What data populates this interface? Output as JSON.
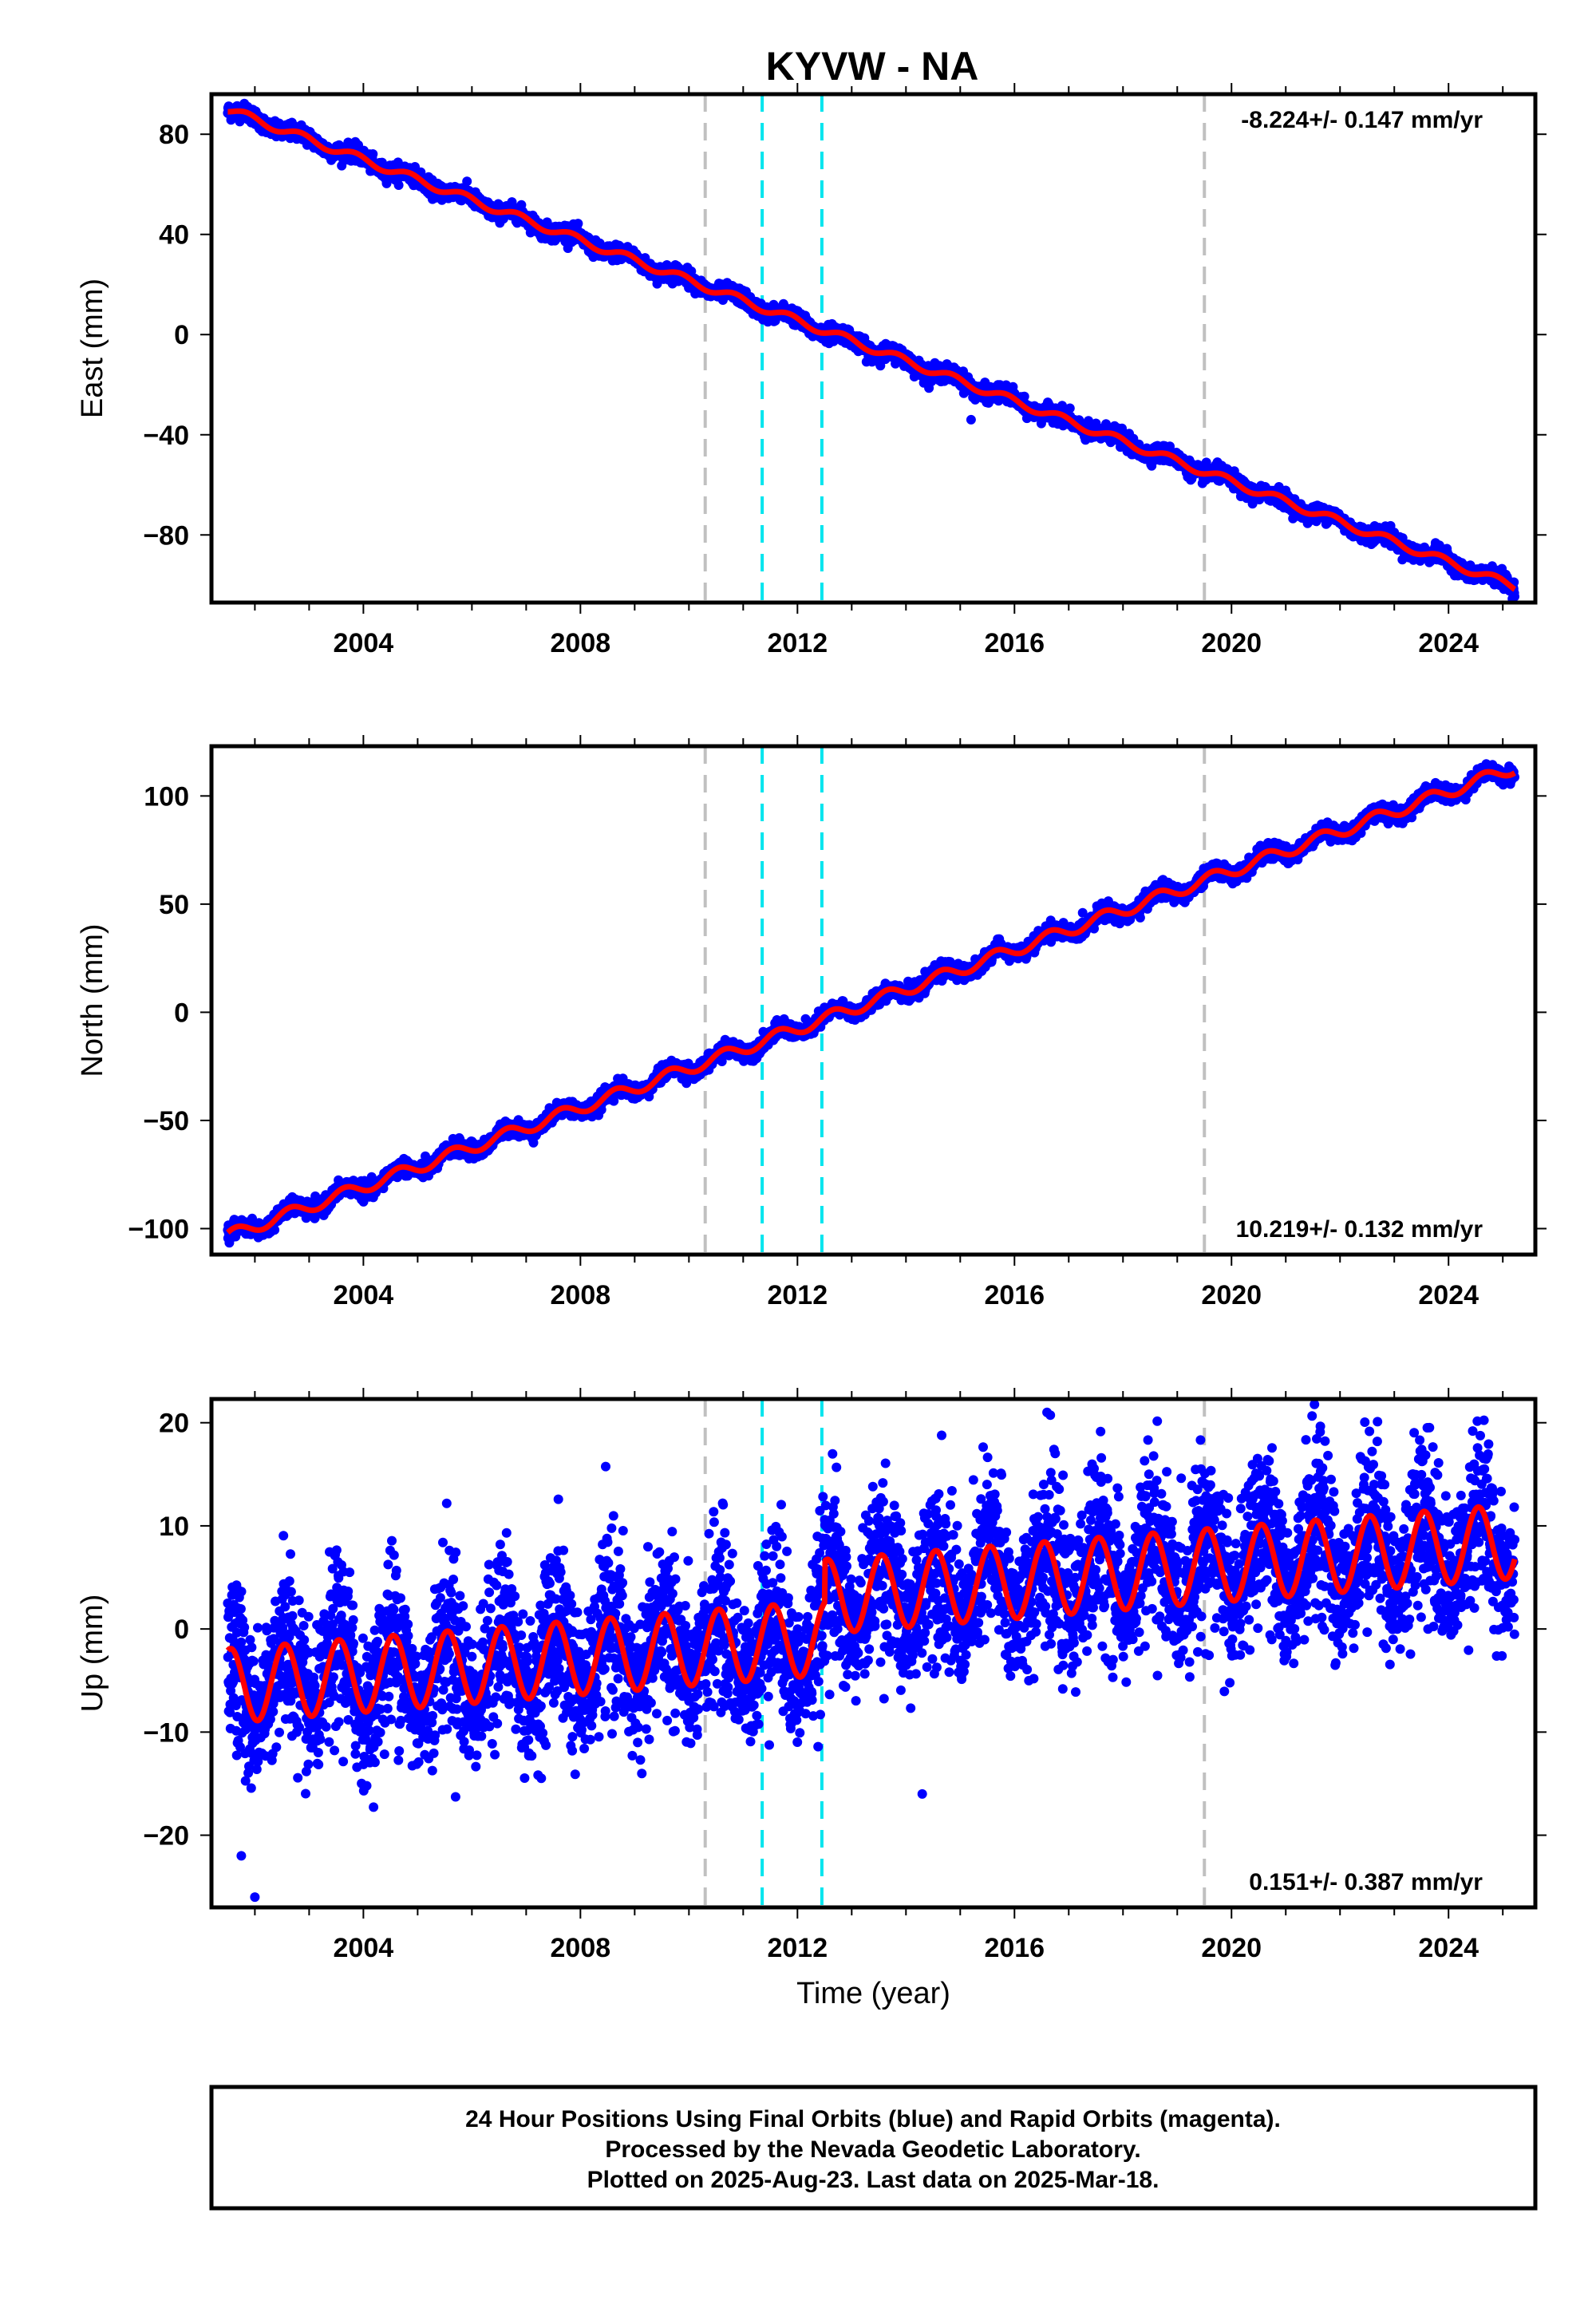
{
  "figure": {
    "title": "KYVW - NA",
    "footer": [
      "24 Hour Positions Using Final Orbits (blue) and Rapid Orbits (magenta).",
      "Processed by the Nevada Geodetic Laboratory.",
      "Plotted on 2025-Aug-23. Last data on 2025-Mar-18."
    ],
    "colors": {
      "final_points": "#0000ff",
      "model_line": "#ff0000",
      "antenna_change": "#c0c0c0",
      "earthquake": "#00e5ee",
      "frame": "#000000"
    }
  },
  "chart_data": [
    {
      "type": "scatter",
      "component": "East",
      "ylabel": "East (mm)",
      "xlabel": "",
      "xlim": [
        2001.2,
        2025.6
      ],
      "ylim": [
        -107,
        96
      ],
      "xticks": [
        2004,
        2008,
        2012,
        2016,
        2020,
        2024
      ],
      "yticks": [
        80,
        40,
        0,
        -40,
        -80
      ],
      "ytick_labels": [
        "80",
        "40",
        "0",
        "−40",
        "−80"
      ],
      "rate_label": "-8.224+/- 0.147 mm/yr",
      "rate_position": "top-right",
      "rate_mm_per_yr": -8.224,
      "start": [
        2001.55,
        89.5
      ],
      "end": [
        2025.2,
        -100.5
      ],
      "seasonal_amplitude": 1.6,
      "scatter_sd": 1.6,
      "outliers": [
        [
          2015.2,
          -34
        ]
      ],
      "range": [
        2001.5,
        2025.22
      ]
    },
    {
      "type": "scatter",
      "component": "North",
      "ylabel": "North (mm)",
      "xlabel": "",
      "xlim": [
        2001.2,
        2025.6
      ],
      "ylim": [
        -112,
        123
      ],
      "xticks": [
        2004,
        2008,
        2012,
        2016,
        2020,
        2024
      ],
      "yticks": [
        100,
        50,
        0,
        -50,
        -100
      ],
      "ytick_labels": [
        "100",
        "50",
        "0",
        "−50",
        "−100"
      ],
      "rate_label": "10.219+/- 0.132 mm/yr",
      "rate_position": "bottom-right",
      "rate_mm_per_yr": 10.219,
      "start": [
        2001.55,
        -103
      ],
      "end": [
        2025.2,
        113
      ],
      "seasonal_amplitude": 2.8,
      "scatter_sd": 1.8,
      "outliers": [],
      "range": [
        2001.5,
        2025.22
      ]
    },
    {
      "type": "scatter",
      "component": "Up",
      "ylabel": "Up (mm)",
      "xlabel": "Time (year)",
      "xlim": [
        2001.2,
        2025.6
      ],
      "ylim": [
        -27,
        22.3
      ],
      "xticks": [
        2004,
        2008,
        2012,
        2016,
        2020,
        2024
      ],
      "yticks": [
        20,
        10,
        0,
        -10,
        -20
      ],
      "ytick_labels": [
        "20",
        "10",
        "0",
        "−10",
        "−20"
      ],
      "rate_label": "0.151+/- 0.387 mm/yr",
      "rate_position": "bottom-right",
      "rate_mm_per_yr": 0.151,
      "start": [
        2001.55,
        -5.5
      ],
      "end": [
        2025.2,
        4.5
      ],
      "seasonal_amplitude": 3.6,
      "scatter_sd": 3.4,
      "outliers": [
        [
          2001.75,
          -22
        ],
        [
          2002.0,
          -26
        ],
        [
          2014.3,
          -16
        ],
        [
          2016.6,
          21
        ]
      ],
      "range": [
        2001.5,
        2025.22
      ]
    }
  ],
  "event_lines": {
    "antenna_change_years": [
      2010.3,
      2019.5
    ],
    "earthquake_years": [
      2011.35,
      2012.45
    ]
  }
}
